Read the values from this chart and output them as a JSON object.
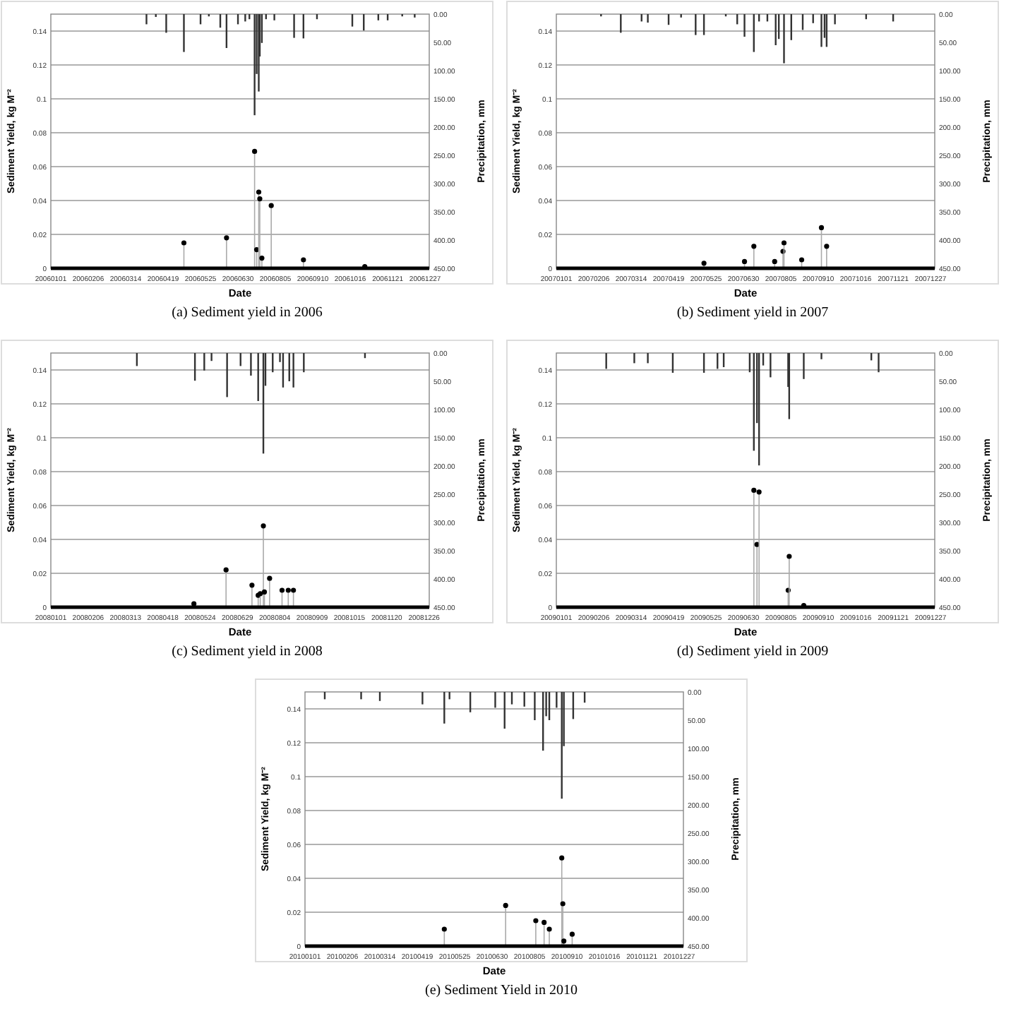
{
  "chart_data": [
    {
      "type": "bar",
      "title": "(a) Sediment yield in 2006",
      "xlabel": "Date",
      "ylabel": "Sediment Yield, kg M⁻²",
      "y2label": "Precipitation, mm",
      "grid": "y",
      "xlim": [
        "2006-01-01",
        "2006-12-31"
      ],
      "xticks": [
        {
          "value": "2006-01-01",
          "label": "20060101"
        },
        {
          "value": "2006-02-06",
          "label": "20060206"
        },
        {
          "value": "2006-03-14",
          "label": "20060314"
        },
        {
          "value": "2006-04-19",
          "label": "20060419"
        },
        {
          "value": "2006-05-25",
          "label": "20060525"
        },
        {
          "value": "2006-06-30",
          "label": "20060630"
        },
        {
          "value": "2006-08-05",
          "label": "20060805"
        },
        {
          "value": "2006-09-10",
          "label": "20060910"
        },
        {
          "value": "2006-10-16",
          "label": "20061016"
        },
        {
          "value": "2006-11-21",
          "label": "20061121"
        },
        {
          "value": "2006-12-27",
          "label": "20061227"
        }
      ],
      "ylim": [
        0,
        0.15
      ],
      "yticks": [
        0,
        0.02,
        0.04,
        0.06,
        0.08,
        0.1,
        0.12,
        0.14
      ],
      "y2lim": [
        450,
        0
      ],
      "y2ticks": [
        {
          "value": 0,
          "label": "0.00"
        },
        {
          "value": 50,
          "label": "50.00"
        },
        {
          "value": 100,
          "label": "100.00"
        },
        {
          "value": 150,
          "label": "150.00"
        },
        {
          "value": 200,
          "label": "200.00"
        },
        {
          "value": 250,
          "label": "250.00"
        },
        {
          "value": 300,
          "label": "300.00"
        },
        {
          "value": 350,
          "label": "350.00"
        },
        {
          "value": 400,
          "label": "400.00"
        },
        {
          "value": 450,
          "label": "450.00"
        }
      ],
      "series": [
        {
          "type": "bar",
          "axis": "y2",
          "color": "#333333",
          "x": [
            "2006-04-03",
            "2006-04-12",
            "2006-04-22",
            "2006-05-09",
            "2006-05-25",
            "2006-06-02",
            "2006-06-13",
            "2006-06-19",
            "2006-06-30",
            "2006-07-07",
            "2006-07-11",
            "2006-07-16",
            "2006-07-18",
            "2006-07-20",
            "2006-07-21",
            "2006-07-23",
            "2006-07-27",
            "2006-08-04",
            "2006-08-23",
            "2006-09-01",
            "2006-09-14",
            "2006-10-18",
            "2006-10-29",
            "2006-11-12",
            "2006-11-21",
            "2006-12-05",
            "2006-12-17"
          ],
          "values": [
            18,
            5,
            33,
            67,
            18,
            4,
            24,
            60,
            18,
            13,
            9,
            179,
            106,
            137,
            75,
            51,
            9,
            11,
            42,
            43,
            9,
            22,
            29,
            11,
            11,
            4,
            6
          ]
        },
        {
          "type": "lollipop",
          "color": "#000000",
          "x": [
            "2006-05-09",
            "2006-06-19",
            "2006-07-16",
            "2006-07-18",
            "2006-07-20",
            "2006-07-21",
            "2006-07-23",
            "2006-08-01",
            "2006-09-01",
            "2006-10-30"
          ],
          "values": [
            0.015,
            0.018,
            0.069,
            0.011,
            0.045,
            0.041,
            0.006,
            0.037,
            0.005,
            0.001
          ]
        }
      ]
    },
    {
      "type": "bar",
      "title": "(b) Sediment yield in 2007",
      "xlabel": "Date",
      "ylabel": "Sediment Yield, kg M⁻²",
      "y2label": "Precipitation, mm",
      "grid": "y",
      "xlim": [
        "2007-01-01",
        "2007-12-31"
      ],
      "xticks": [
        {
          "value": "2007-01-01",
          "label": "20070101"
        },
        {
          "value": "2007-02-06",
          "label": "20070206"
        },
        {
          "value": "2007-03-14",
          "label": "20070314"
        },
        {
          "value": "2007-04-19",
          "label": "20070419"
        },
        {
          "value": "2007-05-25",
          "label": "20070525"
        },
        {
          "value": "2007-06-30",
          "label": "20070630"
        },
        {
          "value": "2007-08-05",
          "label": "20070805"
        },
        {
          "value": "2007-09-10",
          "label": "20070910"
        },
        {
          "value": "2007-10-16",
          "label": "20071016"
        },
        {
          "value": "2007-11-21",
          "label": "20071121"
        },
        {
          "value": "2007-12-27",
          "label": "20071227"
        }
      ],
      "ylim": [
        0,
        0.15
      ],
      "yticks": [
        0,
        0.02,
        0.04,
        0.06,
        0.08,
        0.1,
        0.12,
        0.14
      ],
      "y2lim": [
        450,
        0
      ],
      "y2ticks": [
        {
          "value": 0,
          "label": "0.00"
        },
        {
          "value": 50,
          "label": "50.00"
        },
        {
          "value": 100,
          "label": "100.00"
        },
        {
          "value": 150,
          "label": "150.00"
        },
        {
          "value": 200,
          "label": "200.00"
        },
        {
          "value": 250,
          "label": "250.00"
        },
        {
          "value": 300,
          "label": "300.00"
        },
        {
          "value": 350,
          "label": "350.00"
        },
        {
          "value": 400,
          "label": "400.00"
        },
        {
          "value": 450,
          "label": "450.00"
        }
      ],
      "series": [
        {
          "type": "bar",
          "axis": "y2",
          "color": "#333333",
          "x": [
            "2007-02-13",
            "2007-03-04",
            "2007-03-24",
            "2007-03-30",
            "2007-04-19",
            "2007-05-01",
            "2007-05-15",
            "2007-05-23",
            "2007-06-13",
            "2007-06-24",
            "2007-07-01",
            "2007-07-10",
            "2007-07-15",
            "2007-07-23",
            "2007-07-31",
            "2007-08-03",
            "2007-08-08",
            "2007-08-15",
            "2007-08-26",
            "2007-09-05",
            "2007-09-13",
            "2007-09-16",
            "2007-09-18",
            "2007-09-26",
            "2007-10-26",
            "2007-11-21"
          ],
          "values": [
            4,
            33,
            13,
            15,
            19,
            6,
            37,
            37,
            4,
            18,
            40,
            67,
            13,
            13,
            55,
            44,
            87,
            46,
            28,
            16,
            58,
            42,
            58,
            18,
            9,
            13
          ]
        },
        {
          "type": "lollipop",
          "color": "#000000",
          "x": [
            "2007-05-23",
            "2007-07-01",
            "2007-07-10",
            "2007-07-30",
            "2007-08-07",
            "2007-08-08",
            "2007-08-25",
            "2007-09-13",
            "2007-09-18"
          ],
          "values": [
            0.003,
            0.004,
            0.013,
            0.004,
            0.01,
            0.015,
            0.005,
            0.024,
            0.013
          ]
        }
      ]
    },
    {
      "type": "bar",
      "title": "(c) Sediment yield in 2008",
      "xlabel": "Date",
      "ylabel": "Sediment Yield, kg M⁻²",
      "y2label": "Precipitation, mm",
      "grid": "y",
      "xlim": [
        "2008-01-01",
        "2008-12-31"
      ],
      "xticks": [
        {
          "value": "2008-01-01",
          "label": "20080101"
        },
        {
          "value": "2008-02-06",
          "label": "20080206"
        },
        {
          "value": "2008-03-13",
          "label": "20080313"
        },
        {
          "value": "2008-04-18",
          "label": "20080418"
        },
        {
          "value": "2008-05-24",
          "label": "20080524"
        },
        {
          "value": "2008-06-29",
          "label": "20080629"
        },
        {
          "value": "2008-08-04",
          "label": "20080804"
        },
        {
          "value": "2008-09-09",
          "label": "20080909"
        },
        {
          "value": "2008-10-15",
          "label": "20081015"
        },
        {
          "value": "2008-11-20",
          "label": "20081120"
        },
        {
          "value": "2008-12-26",
          "label": "20081226"
        }
      ],
      "ylim": [
        0,
        0.15
      ],
      "yticks": [
        0,
        0.02,
        0.04,
        0.06,
        0.08,
        0.1,
        0.12,
        0.14
      ],
      "y2lim": [
        450,
        0
      ],
      "y2ticks": [
        {
          "value": 0,
          "label": "0.00"
        },
        {
          "value": 50,
          "label": "50.00"
        },
        {
          "value": 100,
          "label": "100.00"
        },
        {
          "value": 150,
          "label": "150.00"
        },
        {
          "value": 200,
          "label": "200.00"
        },
        {
          "value": 250,
          "label": "250.00"
        },
        {
          "value": 300,
          "label": "300.00"
        },
        {
          "value": 350,
          "label": "350.00"
        },
        {
          "value": 400,
          "label": "400.00"
        },
        {
          "value": 450,
          "label": "450.00"
        }
      ],
      "series": [
        {
          "type": "bar",
          "axis": "y2",
          "color": "#333333",
          "x": [
            "2008-03-24",
            "2008-05-19",
            "2008-05-28",
            "2008-06-04",
            "2008-06-19",
            "2008-07-02",
            "2008-07-12",
            "2008-07-19",
            "2008-07-24",
            "2008-07-26",
            "2008-08-02",
            "2008-08-09",
            "2008-08-12",
            "2008-08-18",
            "2008-08-22",
            "2008-09-01",
            "2008-10-30"
          ],
          "values": [
            23,
            49,
            31,
            14,
            78,
            23,
            40,
            85,
            178,
            58,
            34,
            16,
            61,
            50,
            61,
            34,
            9
          ]
        },
        {
          "type": "lollipop",
          "color": "#000000",
          "x": [
            "2008-05-18",
            "2008-06-18",
            "2008-07-13",
            "2008-07-19",
            "2008-07-21",
            "2008-07-24",
            "2008-07-25",
            "2008-07-30",
            "2008-08-11",
            "2008-08-17",
            "2008-08-22"
          ],
          "values": [
            0.002,
            0.022,
            0.013,
            0.007,
            0.008,
            0.048,
            0.009,
            0.017,
            0.01,
            0.01,
            0.01
          ]
        }
      ]
    },
    {
      "type": "bar",
      "title": "(d) Sediment yield in 2009",
      "xlabel": "Date",
      "ylabel": "Sediment Yield, kg M⁻²",
      "y2label": "Precipitation, mm",
      "grid": "y",
      "xlim": [
        "2009-01-01",
        "2009-12-31"
      ],
      "xticks": [
        {
          "value": "2009-01-01",
          "label": "20090101"
        },
        {
          "value": "2009-02-06",
          "label": "20090206"
        },
        {
          "value": "2009-03-14",
          "label": "20090314"
        },
        {
          "value": "2009-04-19",
          "label": "20090419"
        },
        {
          "value": "2009-05-25",
          "label": "20090525"
        },
        {
          "value": "2009-06-30",
          "label": "20090630"
        },
        {
          "value": "2009-08-05",
          "label": "20090805"
        },
        {
          "value": "2009-09-10",
          "label": "20090910"
        },
        {
          "value": "2009-10-16",
          "label": "20091016"
        },
        {
          "value": "2009-11-21",
          "label": "20091121"
        },
        {
          "value": "2009-12-27",
          "label": "20091227"
        }
      ],
      "ylim": [
        0,
        0.15
      ],
      "yticks": [
        0,
        0.02,
        0.04,
        0.06,
        0.08,
        0.1,
        0.12,
        0.14
      ],
      "y2lim": [
        450,
        0
      ],
      "y2ticks": [
        {
          "value": 0,
          "label": "0.00"
        },
        {
          "value": 50,
          "label": "50.00"
        },
        {
          "value": 100,
          "label": "100.00"
        },
        {
          "value": 150,
          "label": "150.00"
        },
        {
          "value": 200,
          "label": "200.00"
        },
        {
          "value": 250,
          "label": "250.00"
        },
        {
          "value": 300,
          "label": "300.00"
        },
        {
          "value": 350,
          "label": "350.00"
        },
        {
          "value": 400,
          "label": "400.00"
        },
        {
          "value": 450,
          "label": "450.00"
        }
      ],
      "series": [
        {
          "type": "bar",
          "axis": "y2",
          "color": "#333333",
          "x": [
            "2009-02-18",
            "2009-03-17",
            "2009-03-30",
            "2009-04-23",
            "2009-05-23",
            "2009-06-05",
            "2009-06-11",
            "2009-07-06",
            "2009-07-10",
            "2009-07-13",
            "2009-07-15",
            "2009-07-19",
            "2009-07-26",
            "2009-08-12",
            "2009-08-13",
            "2009-08-27",
            "2009-09-13",
            "2009-10-31",
            "2009-11-07"
          ],
          "values": [
            28,
            18,
            18,
            35,
            35,
            28,
            25,
            34,
            173,
            124,
            199,
            22,
            43,
            60,
            117,
            46,
            11,
            13,
            34
          ]
        },
        {
          "type": "lollipop",
          "color": "#000000",
          "x": [
            "2009-07-10",
            "2009-07-13",
            "2009-07-15",
            "2009-08-12",
            "2009-08-13",
            "2009-08-27"
          ],
          "values": [
            0.069,
            0.037,
            0.068,
            0.01,
            0.03,
            0.001
          ]
        }
      ]
    },
    {
      "type": "bar",
      "title": "(e) Sediment Yield in 2010",
      "xlabel": "Date",
      "ylabel": "Sediment Yield, kg M⁻²",
      "y2label": "Precipitation, mm",
      "grid": "y",
      "xlim": [
        "2010-01-01",
        "2010-12-31"
      ],
      "xticks": [
        {
          "value": "2010-01-01",
          "label": "20100101"
        },
        {
          "value": "2010-02-06",
          "label": "20100206"
        },
        {
          "value": "2010-03-14",
          "label": "20100314"
        },
        {
          "value": "2010-04-19",
          "label": "20100419"
        },
        {
          "value": "2010-05-25",
          "label": "20100525"
        },
        {
          "value": "2010-06-30",
          "label": "20100630"
        },
        {
          "value": "2010-08-05",
          "label": "20100805"
        },
        {
          "value": "2010-09-10",
          "label": "20100910"
        },
        {
          "value": "2010-10-16",
          "label": "20101016"
        },
        {
          "value": "2010-11-21",
          "label": "20101121"
        },
        {
          "value": "2010-12-27",
          "label": "20101227"
        }
      ],
      "ylim": [
        0,
        0.15
      ],
      "yticks": [
        0,
        0.02,
        0.04,
        0.06,
        0.08,
        0.1,
        0.12,
        0.14
      ],
      "y2lim": [
        450,
        0
      ],
      "y2ticks": [
        {
          "value": 0,
          "label": "0.00"
        },
        {
          "value": 50,
          "label": "50.00"
        },
        {
          "value": 100,
          "label": "100.00"
        },
        {
          "value": 150,
          "label": "150.00"
        },
        {
          "value": 200,
          "label": "200.00"
        },
        {
          "value": 250,
          "label": "250.00"
        },
        {
          "value": 300,
          "label": "300.00"
        },
        {
          "value": 350,
          "label": "350.00"
        },
        {
          "value": 400,
          "label": "400.00"
        },
        {
          "value": 450,
          "label": "450.00"
        }
      ],
      "series": [
        {
          "type": "bar",
          "axis": "y2",
          "color": "#333333",
          "x": [
            "2010-01-20",
            "2010-02-24",
            "2010-03-14",
            "2010-04-24",
            "2010-05-15",
            "2010-05-20",
            "2010-06-09",
            "2010-07-03",
            "2010-07-12",
            "2010-07-19",
            "2010-07-31",
            "2010-08-10",
            "2010-08-18",
            "2010-08-21",
            "2010-08-24",
            "2010-08-31",
            "2010-09-05",
            "2010-09-07",
            "2010-09-16",
            "2010-09-27"
          ],
          "values": [
            13,
            13,
            16,
            22,
            56,
            13,
            36,
            28,
            65,
            22,
            26,
            50,
            104,
            43,
            50,
            28,
            189,
            96,
            48,
            19
          ]
        },
        {
          "type": "lollipop",
          "color": "#000000",
          "x": [
            "2010-05-15",
            "2010-07-13",
            "2010-08-11",
            "2010-08-19",
            "2010-08-24",
            "2010-09-05",
            "2010-09-06",
            "2010-09-07",
            "2010-09-15"
          ],
          "values": [
            0.01,
            0.024,
            0.015,
            0.014,
            0.01,
            0.052,
            0.025,
            0.003,
            0.007
          ]
        }
      ]
    }
  ]
}
